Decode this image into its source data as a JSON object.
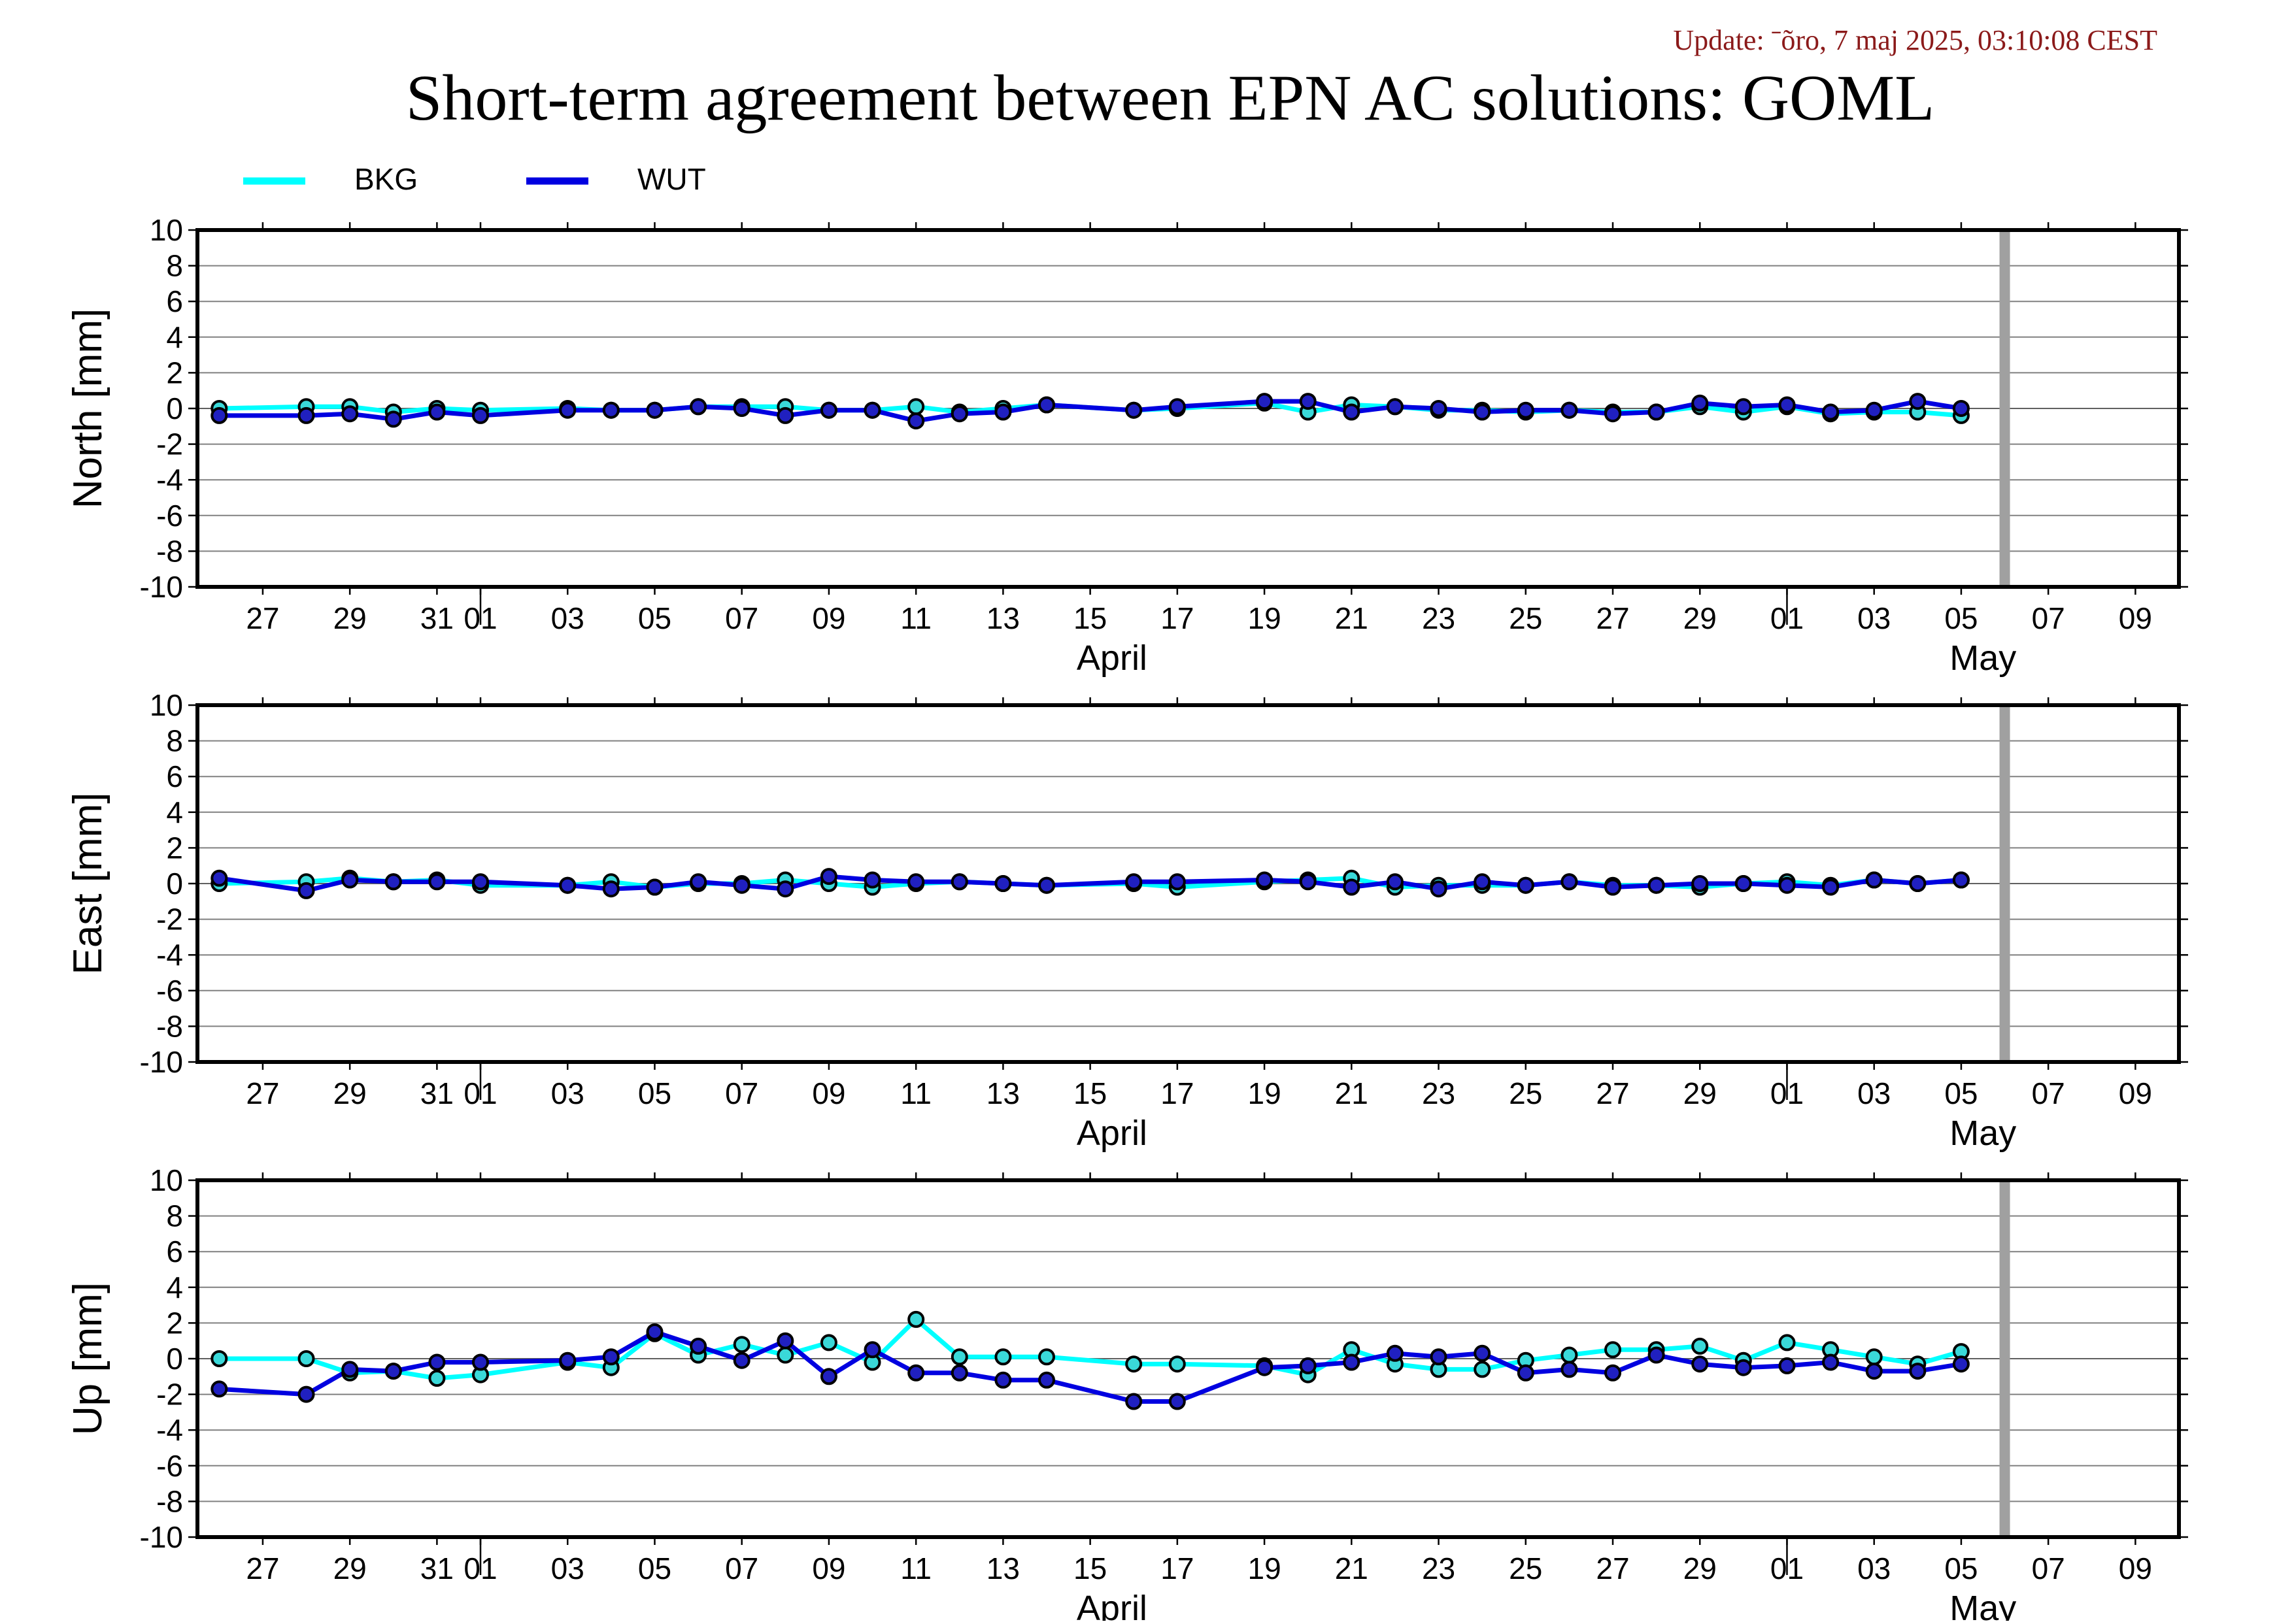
{
  "update_text": "Update: ˉõro, 7 maj 2025, 03:10:08 CEST",
  "colors": {
    "update_text": "#8b1a1a",
    "BKG": "#00ffff",
    "WUT": "#0000e0",
    "grid": "#808080",
    "current_day_bar": "#a0a0a0",
    "frame": "#000000"
  },
  "chart_data": {
    "type": "line",
    "title": "Short-term agreement between EPN AC solutions: GOML",
    "legend_placement": "top-left, above first panel",
    "grid": true,
    "x_range": [
      "2025-03-25T12:00",
      "2025-05-10T00:00"
    ],
    "current_day_marker": "2025-05-06",
    "x_tick_labels": [
      "27",
      "29",
      "31",
      "01",
      "03",
      "05",
      "07",
      "09",
      "11",
      "13",
      "15",
      "17",
      "19",
      "21",
      "23",
      "25",
      "27",
      "29",
      "01",
      "03",
      "05",
      "07",
      "09"
    ],
    "month_labels": [
      "April",
      "May"
    ],
    "x": [
      "2025-03-26",
      "2025-03-28",
      "2025-03-29",
      "2025-03-30",
      "2025-03-31",
      "2025-04-01",
      "2025-04-03",
      "2025-04-04",
      "2025-04-05",
      "2025-04-06",
      "2025-04-07",
      "2025-04-08",
      "2025-04-09",
      "2025-04-10",
      "2025-04-11",
      "2025-04-12",
      "2025-04-13",
      "2025-04-14",
      "2025-04-16",
      "2025-04-17",
      "2025-04-19",
      "2025-04-20",
      "2025-04-21",
      "2025-04-22",
      "2025-04-23",
      "2025-04-24",
      "2025-04-25",
      "2025-04-26",
      "2025-04-27",
      "2025-04-28",
      "2025-04-29",
      "2025-04-30",
      "2025-05-01",
      "2025-05-02",
      "2025-05-03",
      "2025-05-04",
      "2025-05-05"
    ],
    "panels": [
      {
        "ylabel": "North [mm]",
        "ylim": [
          -10,
          10
        ],
        "yticks": [
          10,
          8,
          6,
          4,
          2,
          0,
          -2,
          -4,
          -6,
          -8,
          -10
        ],
        "series": [
          {
            "name": "BKG",
            "values": [
              0.0,
              0.1,
              0.1,
              -0.2,
              0.0,
              -0.1,
              0.0,
              -0.1,
              -0.1,
              0.1,
              0.1,
              0.1,
              -0.1,
              -0.1,
              0.1,
              -0.2,
              0.0,
              0.2,
              -0.1,
              0.0,
              0.3,
              -0.2,
              0.2,
              0.1,
              -0.1,
              -0.1,
              -0.2,
              -0.1,
              -0.2,
              -0.2,
              0.1,
              -0.2,
              0.1,
              -0.3,
              -0.2,
              -0.2,
              -0.4
            ]
          },
          {
            "name": "WUT",
            "values": [
              -0.4,
              -0.4,
              -0.3,
              -0.6,
              -0.2,
              -0.4,
              -0.1,
              -0.1,
              -0.1,
              0.1,
              0.0,
              -0.4,
              -0.1,
              -0.1,
              -0.7,
              -0.3,
              -0.2,
              0.2,
              -0.1,
              0.1,
              0.4,
              0.4,
              -0.2,
              0.1,
              0.0,
              -0.2,
              -0.1,
              -0.1,
              -0.3,
              -0.2,
              0.3,
              0.1,
              0.2,
              -0.2,
              -0.1,
              0.4,
              0.0
            ]
          }
        ]
      },
      {
        "ylabel": "East [mm]",
        "ylim": [
          -10,
          10
        ],
        "yticks": [
          10,
          8,
          6,
          4,
          2,
          0,
          -2,
          -4,
          -6,
          -8,
          -10
        ],
        "series": [
          {
            "name": "BKG",
            "values": [
              0.0,
              0.1,
              0.3,
              0.1,
              0.2,
              -0.1,
              -0.1,
              0.1,
              -0.2,
              0.0,
              0.0,
              0.2,
              0.0,
              -0.2,
              0.0,
              0.1,
              0.0,
              -0.1,
              0.0,
              -0.2,
              0.1,
              0.2,
              0.3,
              -0.2,
              -0.1,
              -0.1,
              -0.1,
              0.1,
              -0.1,
              -0.1,
              -0.2,
              0.0,
              0.1,
              -0.1,
              0.2,
              0.0,
              0.2
            ]
          },
          {
            "name": "WUT",
            "values": [
              0.3,
              -0.4,
              0.2,
              0.1,
              0.1,
              0.1,
              -0.1,
              -0.3,
              -0.2,
              0.1,
              -0.1,
              -0.3,
              0.4,
              0.2,
              0.1,
              0.1,
              0.0,
              -0.1,
              0.1,
              0.1,
              0.2,
              0.1,
              -0.2,
              0.1,
              -0.3,
              0.1,
              -0.1,
              0.1,
              -0.2,
              -0.1,
              0.0,
              0.0,
              -0.1,
              -0.2,
              0.2,
              0.0,
              0.2
            ]
          }
        ]
      },
      {
        "ylabel": "Up [mm]",
        "ylim": [
          -10,
          10
        ],
        "yticks": [
          10,
          8,
          6,
          4,
          2,
          0,
          -2,
          -4,
          -6,
          -8,
          -10
        ],
        "series": [
          {
            "name": "BKG",
            "values": [
              0.0,
              0.0,
              -0.8,
              -0.7,
              -1.1,
              -0.9,
              -0.2,
              -0.5,
              1.4,
              0.2,
              0.8,
              0.2,
              0.9,
              -0.2,
              2.2,
              0.1,
              0.1,
              0.1,
              -0.3,
              -0.3,
              -0.4,
              -0.9,
              0.5,
              -0.3,
              -0.6,
              -0.6,
              -0.1,
              0.2,
              0.5,
              0.5,
              0.7,
              -0.1,
              0.9,
              0.5,
              0.1,
              -0.3,
              0.4
            ]
          },
          {
            "name": "WUT",
            "values": [
              -1.7,
              -2.0,
              -0.6,
              -0.7,
              -0.2,
              -0.2,
              -0.1,
              0.1,
              1.5,
              0.7,
              -0.1,
              1.0,
              -1.0,
              0.5,
              -0.8,
              -0.8,
              -1.2,
              -1.2,
              -2.4,
              -2.4,
              -0.5,
              -0.4,
              -0.2,
              0.3,
              0.1,
              0.3,
              -0.8,
              -0.6,
              -0.8,
              0.2,
              -0.3,
              -0.5,
              -0.4,
              -0.2,
              -0.7,
              -0.7,
              -0.3
            ]
          }
        ]
      }
    ]
  }
}
